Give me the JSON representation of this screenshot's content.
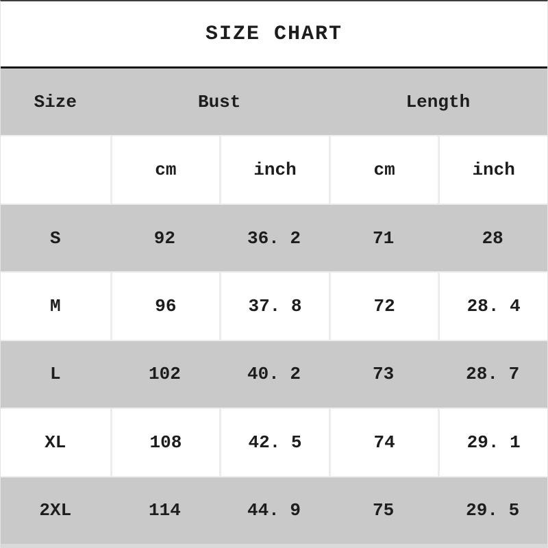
{
  "title": "SIZE CHART",
  "table": {
    "header": {
      "size": "Size",
      "bust": "Bust",
      "length": "Length"
    },
    "units": [
      "",
      "cm",
      "inch",
      "cm",
      "inch"
    ],
    "rows": [
      {
        "label": "S",
        "bust_cm": "92",
        "bust_inch": "36. 2",
        "length_cm": "71",
        "length_inch": "28"
      },
      {
        "label": "M",
        "bust_cm": "96",
        "bust_inch": "37. 8",
        "length_cm": "72",
        "length_inch": "28. 4"
      },
      {
        "label": "L",
        "bust_cm": "102",
        "bust_inch": "40. 2",
        "length_cm": "73",
        "length_inch": "28. 7"
      },
      {
        "label": "XL",
        "bust_cm": "108",
        "bust_inch": "42. 5",
        "length_cm": "74",
        "length_inch": "29. 1"
      },
      {
        "label": "2XL",
        "bust_cm": "114",
        "bust_inch": "44. 9",
        "length_cm": "75",
        "length_inch": "29. 5"
      }
    ]
  },
  "colors": {
    "row_gray": "#c9c9c9",
    "row_white": "#ffffff",
    "grid_line": "#ececec",
    "title_rule": "#151515",
    "top_edge": "#3c3c3c",
    "bottom_strip": "#d9d9d9",
    "text": "#1d1d1d"
  }
}
